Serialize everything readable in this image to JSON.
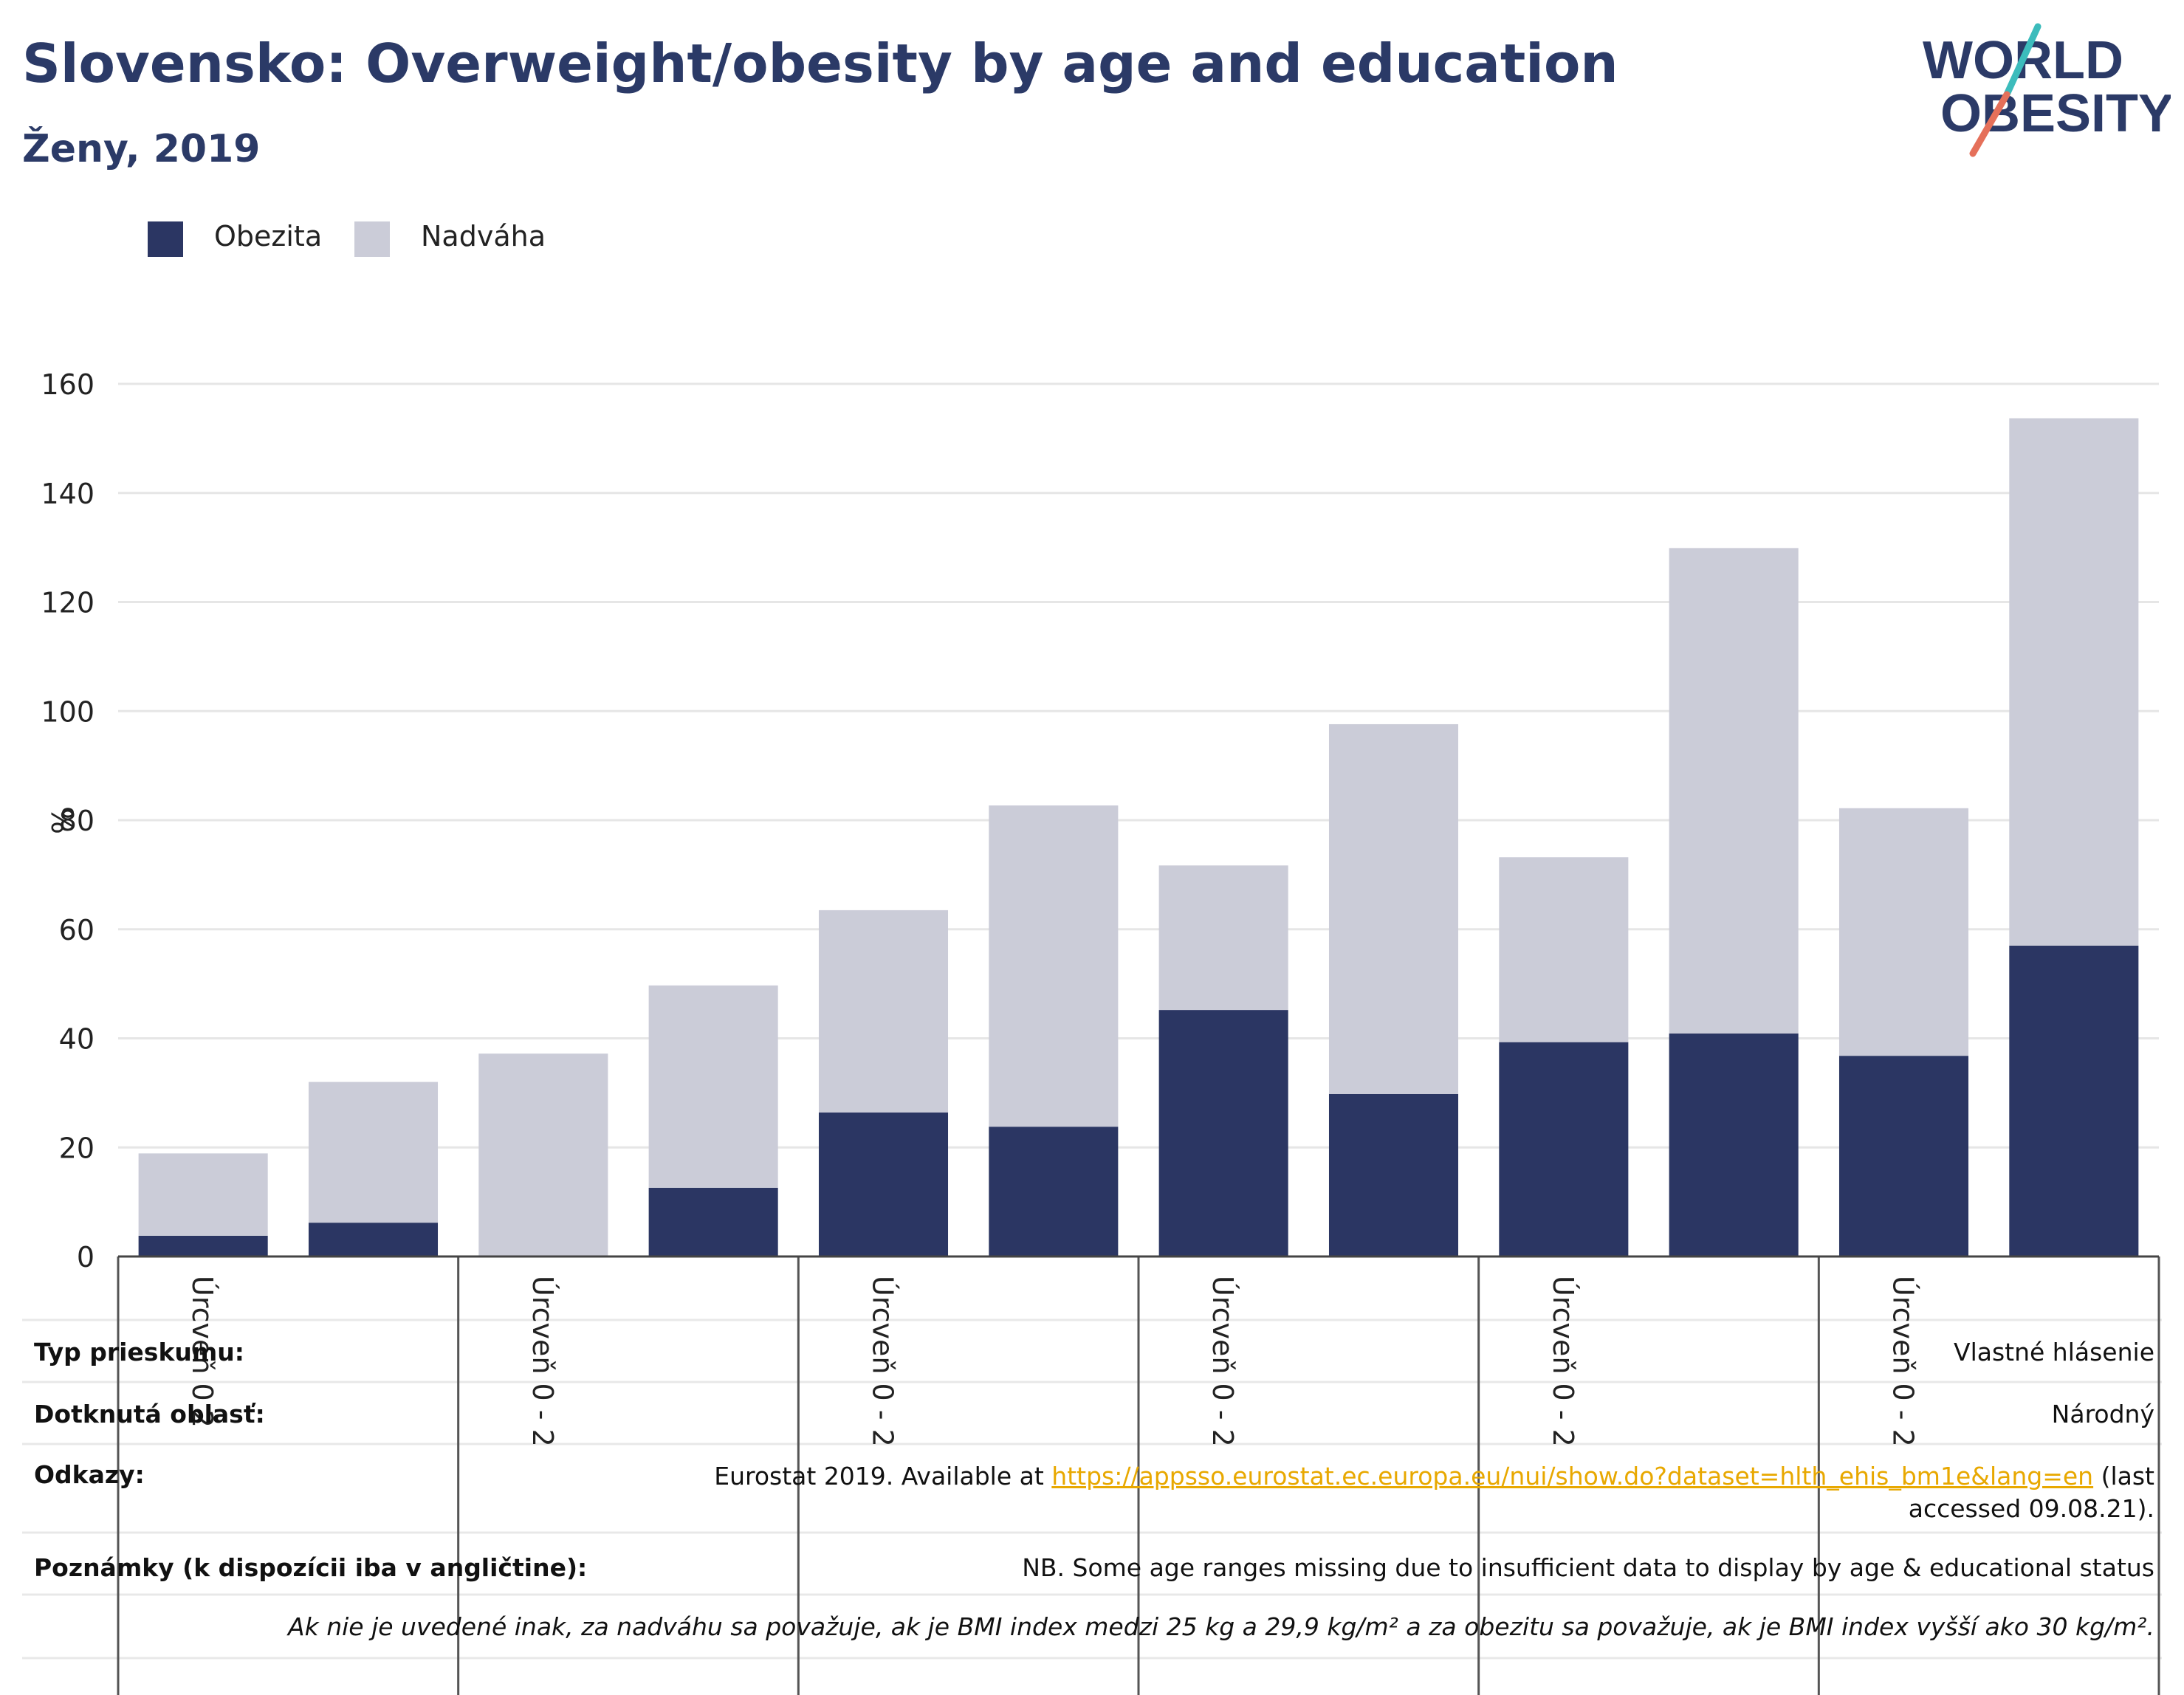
{
  "header": {
    "title": "Slovensko: Overweight/obesity by age and education",
    "subtitle": "Ženy, 2019"
  },
  "logo": {
    "line1": "WORLD",
    "line2": "OBESITY"
  },
  "colors": {
    "obesity": "#2b3663",
    "overweight": "#cbccd8",
    "title": "#2b3a67",
    "gridline": "#e6e6e6",
    "link": "#e8a800",
    "logo_teal": "#3cbcbc",
    "logo_coral": "#e5705a"
  },
  "chart_data": {
    "type": "bar",
    "stacked": true,
    "ylabel": "%",
    "ylim": [
      0,
      160
    ],
    "yticks": [
      0,
      20,
      40,
      60,
      80,
      100,
      120,
      140,
      160
    ],
    "grid": true,
    "legend_position": "top-left",
    "group_labels": [
      "Úrcveň 0 - 2",
      "Úrcveň 0 - 2",
      "Úrcveň 0 - 2",
      "Úrcveň 0 - 2",
      "Úrcveň 0 - 2",
      "Úrcveň 0 - 2"
    ],
    "group_label_display": [
      "Úrcveň 0 2",
      "Úrcveň 0 - 2",
      "Úrcveň 0 - 2",
      "Úrcveň 0 - 2",
      "Úrcveň 0 - 2",
      "Úrcveň 0 - 2"
    ],
    "bars_per_group": 2,
    "series": [
      {
        "name": "Obezita",
        "values": [
          3.8,
          6.2,
          0,
          12.6,
          26.4,
          23.8,
          45.2,
          29.8,
          39.3,
          40.9,
          36.8,
          57.0
        ]
      },
      {
        "name": "Nadváha",
        "values": [
          15.1,
          25.8,
          37.2,
          37.1,
          37.1,
          58.9,
          26.5,
          67.8,
          33.9,
          89.0,
          45.4,
          96.7
        ]
      }
    ]
  },
  "info": {
    "survey_type": {
      "label": "Typ prieskumu:",
      "value": "Vlastné hlásenie"
    },
    "area": {
      "label": "Dotknutá oblasť:",
      "value": "Národný"
    },
    "references": {
      "label": "Odkazy:",
      "prefix": "Eurostat 2019. Available at ",
      "link": "https://appsso.eurostat.ec.europa.eu/nui/show.do?dataset=hlth_ehis_bm1e&lang=en",
      "suffix": " (last accessed 09.08.21)."
    },
    "notes": {
      "label": "Poznámky (k dispozícii iba v angličtine):",
      "value": "NB. Some age ranges missing due to insufficient data to display by age & educational status"
    },
    "definition": "Ak nie je uvedené inak, za nadváhu sa považuje, ak je BMI index medzi 25 kg a 29,9 kg/m² a za obezitu sa považuje, ak je BMI index vyšší ako 30 kg/m²."
  }
}
